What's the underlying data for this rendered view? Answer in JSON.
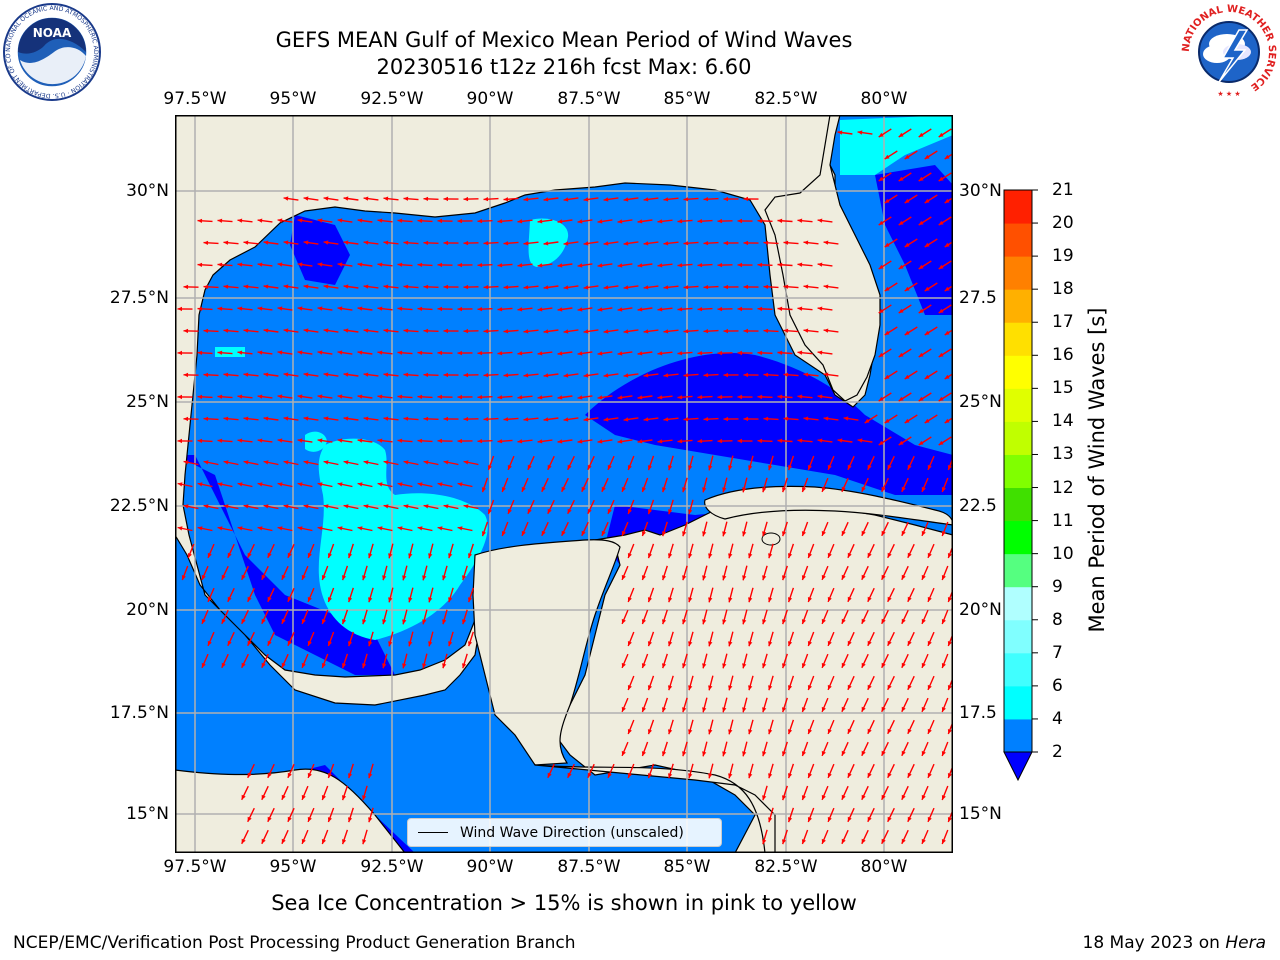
{
  "title": {
    "line1": "GEFS MEAN Gulf of Mexico Mean Period of Wind Waves",
    "line2": "20230516 t12z 216h fcst   Max: 6.60"
  },
  "map": {
    "lon_labels": [
      "97.5°W",
      "95°W",
      "92.5°W",
      "90°W",
      "87.5°W",
      "85°W",
      "82.5°W",
      "80°W"
    ],
    "lat_labels_left": [
      "30°N",
      "27.5°N",
      "25°N",
      "22.5°N",
      "20°N",
      "17.5°N",
      "15°N"
    ],
    "lat_labels_right": [
      "30°N",
      "27.5",
      "25°N",
      "22.5",
      "20°N",
      "17.5",
      "15°N"
    ],
    "land_color": "#efedde",
    "ocean_colors": [
      "#0000ff",
      "#0080ff",
      "#00ffff"
    ],
    "arrow_color": "#ff0000",
    "legend_label": "Wind Wave Direction (unscaled)"
  },
  "colorbar": {
    "title": "Mean Period of Wind Waves [s]",
    "tick_labels": [
      "2",
      "4",
      "6",
      "7",
      "8",
      "9",
      "10",
      "11",
      "12",
      "13",
      "14",
      "15",
      "16",
      "17",
      "18",
      "19",
      "20",
      "21"
    ],
    "colors": [
      "#0080ff",
      "#00ffff",
      "#40ffff",
      "#80ffff",
      "#b0ffff",
      "#55ff80",
      "#00ff00",
      "#40e000",
      "#80ff00",
      "#c0ff00",
      "#e0ff00",
      "#ffff00",
      "#ffe000",
      "#ffb000",
      "#ff8000",
      "#ff5000",
      "#ff2000",
      "#ff0000"
    ],
    "underflow_color": "#0000ff"
  },
  "notes": {
    "sea_ice": "Sea Ice Concentration > 15% is shown in pink to yellow"
  },
  "footer": {
    "left": "NCEP/EMC/Verification Post Processing Product Generation Branch",
    "date": "18 May 2023 on ",
    "machine": "Hera"
  },
  "logos": {
    "noaa_text": "NOAA",
    "noaa_ring": "NATIONAL OCEANIC AND ATMOSPHERIC ADMINISTRATION · U.S. DEPARTMENT OF COMMERCE",
    "nws_ring": "NATIONAL WEATHER SERVICE"
  }
}
